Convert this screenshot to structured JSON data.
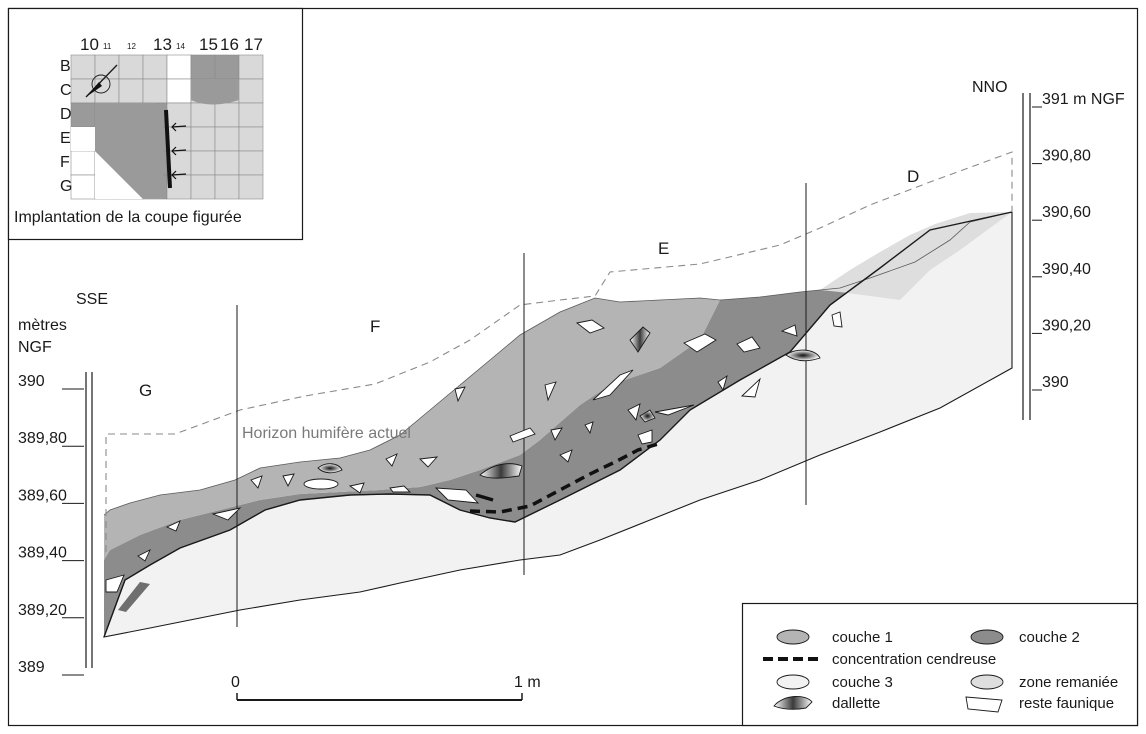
{
  "diagram": {
    "orientation_left": "SSE",
    "orientation_right": "NNO",
    "left_axis": {
      "unit_line1": "mètres",
      "unit_line2": "NGF",
      "ticks": [
        "390",
        "389,80",
        "389,60",
        "389,40",
        "389,20",
        "389"
      ]
    },
    "right_axis": {
      "ticks": [
        "391 m NGF",
        "390,80",
        "390,60",
        "390,40",
        "390,20",
        "390"
      ]
    },
    "sections": [
      "G",
      "F",
      "E",
      "D"
    ],
    "horizon_label": "Horizon humifère actuel",
    "scale": {
      "start": "0",
      "end": "1 m"
    }
  },
  "inset": {
    "caption": "Implantation de la coupe figurée",
    "col_labels": [
      {
        "text": "10",
        "size": "large"
      },
      {
        "text": "11",
        "size": "small"
      },
      {
        "text": "12",
        "size": "small"
      },
      {
        "text": "13",
        "size": "large"
      },
      {
        "text": "14",
        "size": "small"
      },
      {
        "text": "15",
        "size": "large"
      },
      {
        "text": "16",
        "size": "large"
      },
      {
        "text": "17",
        "size": "large"
      }
    ],
    "row_labels": [
      "B",
      "C",
      "D",
      "E",
      "F",
      "G"
    ]
  },
  "legend": {
    "items": [
      {
        "key": "couche1",
        "label": "couche 1"
      },
      {
        "key": "couche2",
        "label": "couche 2"
      },
      {
        "key": "cendre",
        "label": "concentration cendreuse"
      },
      {
        "key": "couche3",
        "label": "couche 3"
      },
      {
        "key": "remanie",
        "label": "zone remaniée"
      },
      {
        "key": "dallette",
        "label": "dallette"
      },
      {
        "key": "faune",
        "label": "reste faunique"
      }
    ]
  },
  "colors": {
    "couche1": "#b4b4b4",
    "couche2": "#8c8c8c",
    "couche3": "#f2f2f2",
    "remanie": "#dedede",
    "grid_light": "#d9d9d9",
    "grid_dark": "#9a9a9a",
    "line": "#1a1a1a",
    "dash": "#8a8a8a"
  }
}
